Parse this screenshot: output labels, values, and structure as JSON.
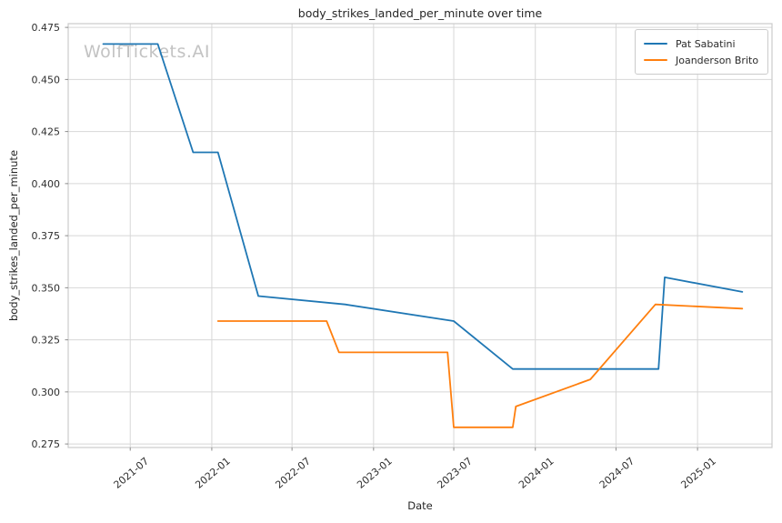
{
  "chart_data": {
    "type": "line",
    "title": "body_strikes_landed_per_minute over time",
    "xlabel": "Date",
    "ylabel": "body_strikes_landed_per_minute",
    "watermark": "WolfTickets.AI",
    "legend_position": "upper right",
    "grid": true,
    "colors": {
      "background": "#ffffff",
      "grid": "#d7d7d7",
      "spine": "#cbcbcb",
      "tick_mark": "#8c8c8c",
      "tick_label": "#2e2e2e"
    },
    "ylim": [
      0.2733,
      0.4768
    ],
    "xlim": [
      "2021-02-11",
      "2025-06-18"
    ],
    "yticks": [
      {
        "value": 0.275,
        "label": "0.275"
      },
      {
        "value": 0.3,
        "label": "0.300"
      },
      {
        "value": 0.325,
        "label": "0.325"
      },
      {
        "value": 0.35,
        "label": "0.350"
      },
      {
        "value": 0.375,
        "label": "0.375"
      },
      {
        "value": 0.4,
        "label": "0.400"
      },
      {
        "value": 0.425,
        "label": "0.425"
      },
      {
        "value": 0.45,
        "label": "0.450"
      },
      {
        "value": 0.475,
        "label": "0.475"
      }
    ],
    "xticks": [
      {
        "date": "2021-07-01",
        "label": "2021-07"
      },
      {
        "date": "2022-01-01",
        "label": "2022-01"
      },
      {
        "date": "2022-07-01",
        "label": "2022-07"
      },
      {
        "date": "2023-01-01",
        "label": "2023-01"
      },
      {
        "date": "2023-07-01",
        "label": "2023-07"
      },
      {
        "date": "2024-01-01",
        "label": "2024-01"
      },
      {
        "date": "2024-07-01",
        "label": "2024-07"
      },
      {
        "date": "2025-01-01",
        "label": "2025-01"
      }
    ],
    "series": [
      {
        "name": "Pat Sabatini",
        "color": "#1f77b4",
        "points": [
          [
            "2021-05-01",
            0.467
          ],
          [
            "2021-09-01",
            0.467
          ],
          [
            "2021-11-20",
            0.415
          ],
          [
            "2022-01-15",
            0.415
          ],
          [
            "2022-04-16",
            0.346
          ],
          [
            "2022-10-29",
            0.342
          ],
          [
            "2023-07-01",
            0.334
          ],
          [
            "2023-11-11",
            0.311
          ],
          [
            "2024-10-05",
            0.311
          ],
          [
            "2024-10-19",
            0.355
          ],
          [
            "2025-04-12",
            0.348
          ]
        ]
      },
      {
        "name": "Joanderson Brito",
        "color": "#ff7f0e",
        "points": [
          [
            "2022-01-15",
            0.334
          ],
          [
            "2022-09-17",
            0.334
          ],
          [
            "2022-10-15",
            0.319
          ],
          [
            "2023-06-17",
            0.319
          ],
          [
            "2023-07-01",
            0.283
          ],
          [
            "2023-11-11",
            0.283
          ],
          [
            "2023-11-18",
            0.293
          ],
          [
            "2024-05-04",
            0.306
          ],
          [
            "2024-09-28",
            0.342
          ],
          [
            "2025-04-12",
            0.34
          ]
        ]
      }
    ]
  }
}
